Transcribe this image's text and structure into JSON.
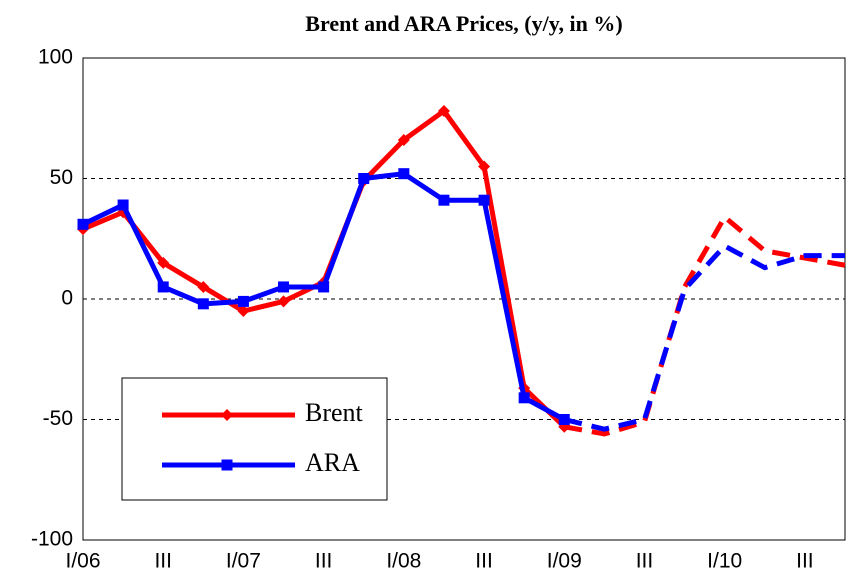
{
  "chart_data": {
    "type": "line",
    "title": "Brent and ARA Prices, (y/y, in %)",
    "categories": [
      "I/06",
      null,
      "III",
      null,
      "I/07",
      null,
      "III",
      null,
      "I/08",
      null,
      "III",
      null,
      "I/09",
      null,
      "III",
      null,
      "I/10",
      null,
      "III",
      null
    ],
    "series": [
      {
        "name": "Brent",
        "color": "#ff0000",
        "marker": "diamond",
        "dash_from": 12,
        "values": [
          29,
          36,
          15,
          5,
          -5,
          -1,
          7,
          49,
          66,
          78,
          55,
          -37,
          -53,
          -56,
          -51,
          5,
          34,
          20,
          17,
          14
        ]
      },
      {
        "name": "ARA",
        "color": "#0000ff",
        "marker": "square",
        "dash_from": 12,
        "values": [
          31,
          39,
          5,
          -2,
          -1,
          5,
          5,
          50,
          52,
          41,
          41,
          -41,
          -50,
          -54,
          -50,
          4,
          22,
          13,
          18,
          18
        ]
      }
    ],
    "ylim": [
      -100,
      100
    ],
    "yticks": [
      -100,
      -50,
      0,
      50,
      100
    ],
    "grid": true,
    "legend": "lower left"
  }
}
